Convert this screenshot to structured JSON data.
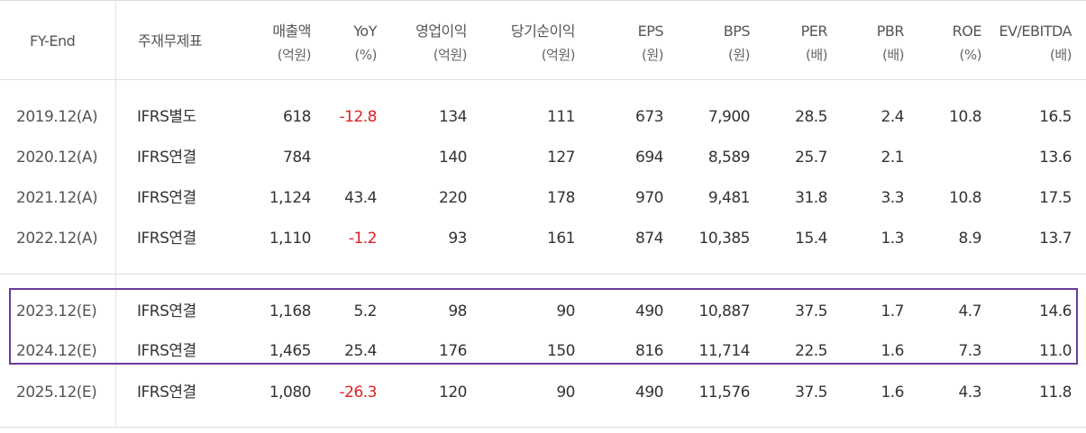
{
  "columns": [
    {
      "label": "FY-End",
      "unit": ""
    },
    {
      "label": "주재무제표",
      "unit": ""
    },
    {
      "label": "매출액",
      "unit": "(억원)"
    },
    {
      "label": "YoY",
      "unit": "(%)"
    },
    {
      "label": "영업이익",
      "unit": "(억원)"
    },
    {
      "label": "당기순이익",
      "unit": "(억원)"
    },
    {
      "label": "EPS",
      "unit": "(원)"
    },
    {
      "label": "BPS",
      "unit": "(원)"
    },
    {
      "label": "PER",
      "unit": "(배)"
    },
    {
      "label": "PBR",
      "unit": "(배)"
    },
    {
      "label": "ROE",
      "unit": "(%)"
    },
    {
      "label": "EV/EBITDA",
      "unit": "(배)"
    }
  ],
  "rows": [
    [
      "2019.12(A)",
      "IFRS별도",
      "618",
      "-12.8",
      "134",
      "111",
      "673",
      "7,900",
      "28.5",
      "2.4",
      "10.8",
      "16.5"
    ],
    [
      "2020.12(A)",
      "IFRS연결",
      "784",
      "",
      "140",
      "127",
      "694",
      "8,589",
      "25.7",
      "2.1",
      "",
      "13.6"
    ],
    [
      "2021.12(A)",
      "IFRS연결",
      "1,124",
      "43.4",
      "220",
      "178",
      "970",
      "9,481",
      "31.8",
      "3.3",
      "10.8",
      "17.5"
    ],
    [
      "2022.12(A)",
      "IFRS연결",
      "1,110",
      "-1.2",
      "93",
      "161",
      "874",
      "10,385",
      "15.4",
      "1.3",
      "8.9",
      "13.7"
    ],
    [
      "2023.12(E)",
      "IFRS연결",
      "1,168",
      "5.2",
      "98",
      "90",
      "490",
      "10,887",
      "37.5",
      "1.7",
      "4.7",
      "14.6"
    ],
    [
      "2024.12(E)",
      "IFRS연결",
      "1,465",
      "25.4",
      "176",
      "150",
      "816",
      "11,714",
      "22.5",
      "1.6",
      "7.3",
      "11.0"
    ],
    [
      "2025.12(E)",
      "IFRS연결",
      "1,080",
      "-26.3",
      "120",
      "90",
      "490",
      "11,576",
      "37.5",
      "1.6",
      "4.3",
      "11.8"
    ]
  ],
  "colors": {
    "negative": "#e0201f",
    "highlight_border": "#6a3b9c"
  },
  "highlighted_rows": [
    "2023.12(E)",
    "2024.12(E)"
  ]
}
